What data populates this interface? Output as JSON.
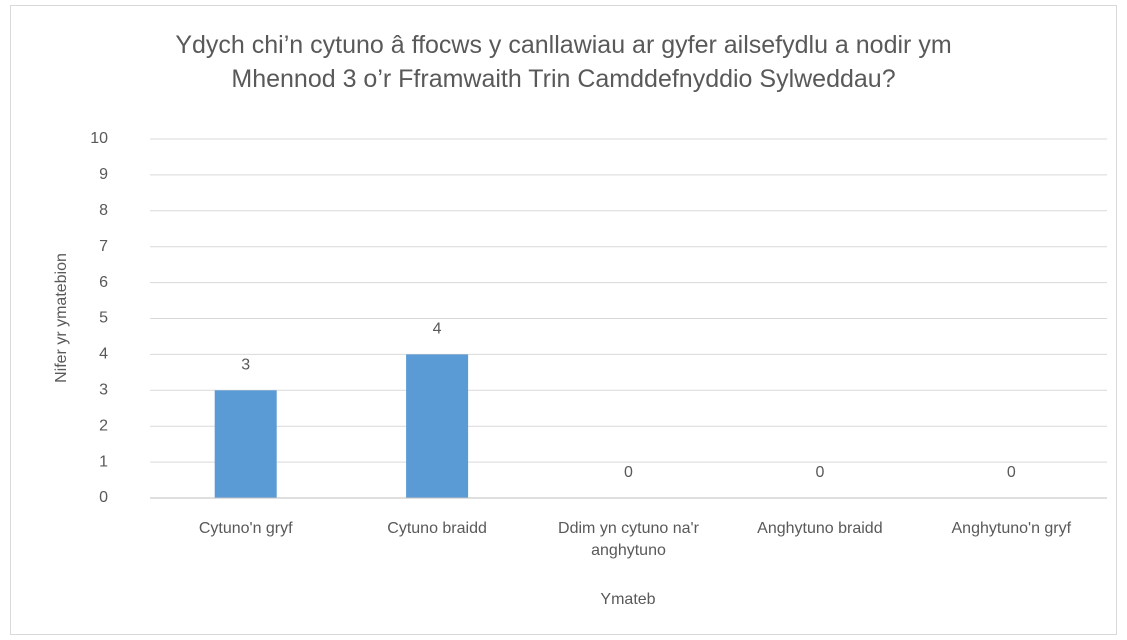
{
  "chart_data": {
    "type": "bar",
    "title": "Ydych chi’n cytuno â ffocws y canllawiau ar gyfer ailsefydlu a nodir ym Mhennod 3 o’r Fframwaith Trin Camddefnyddio Sylweddau?",
    "x_label": "Ymateb",
    "y_label": "Nifer yr ymatebion",
    "categories": [
      "Cytuno'n gryf",
      "Cytuno braidd",
      "Ddim yn cytuno na'r anghytuno",
      "Anghytuno braidd",
      "Anghytuno'n gryf"
    ],
    "values": [
      3,
      4,
      0,
      0,
      0
    ],
    "color": "#5b9bd5",
    "ylim": [
      0,
      10
    ],
    "yticks": [
      0,
      1,
      2,
      3,
      4,
      5,
      6,
      7,
      8,
      9,
      10
    ],
    "grid": true
  }
}
